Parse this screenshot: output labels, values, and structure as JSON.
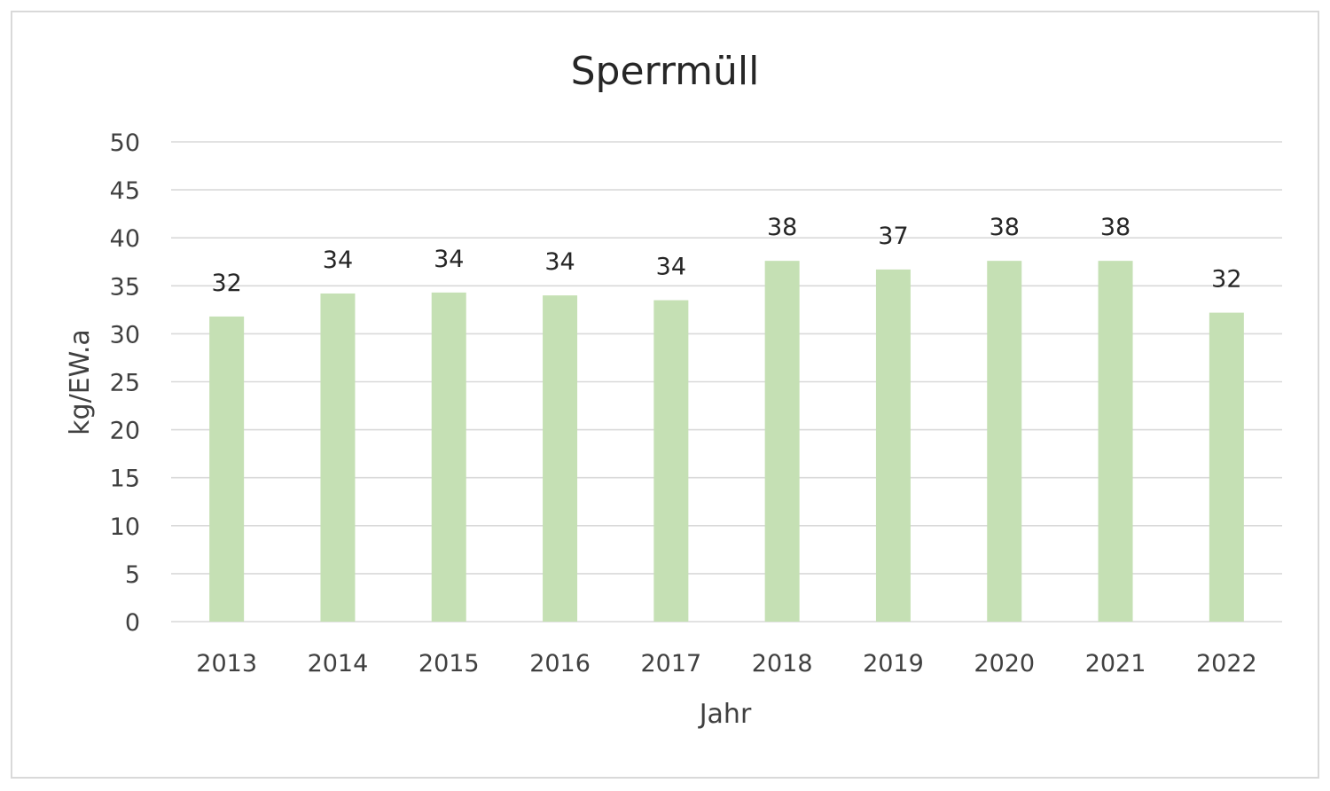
{
  "chart_data": {
    "type": "bar",
    "title": "Sperrmüll",
    "xlabel": "Jahr",
    "ylabel": "kg/EW.a",
    "categories": [
      "2013",
      "2014",
      "2015",
      "2016",
      "2017",
      "2018",
      "2019",
      "2020",
      "2021",
      "2022"
    ],
    "values": [
      31.8,
      34.2,
      34.3,
      34.0,
      33.5,
      37.6,
      36.7,
      37.6,
      37.6,
      32.2
    ],
    "data_labels": [
      "32",
      "34",
      "34",
      "34",
      "34",
      "38",
      "37",
      "38",
      "38",
      "32"
    ],
    "ylim": [
      0,
      50
    ],
    "yticks": [
      "0",
      "5",
      "10",
      "15",
      "20",
      "25",
      "30",
      "35",
      "40",
      "45",
      "50"
    ],
    "grid": true,
    "legend": "none",
    "bar_color": "#c5e0b4",
    "gridline_color": "#d9d9d9"
  }
}
